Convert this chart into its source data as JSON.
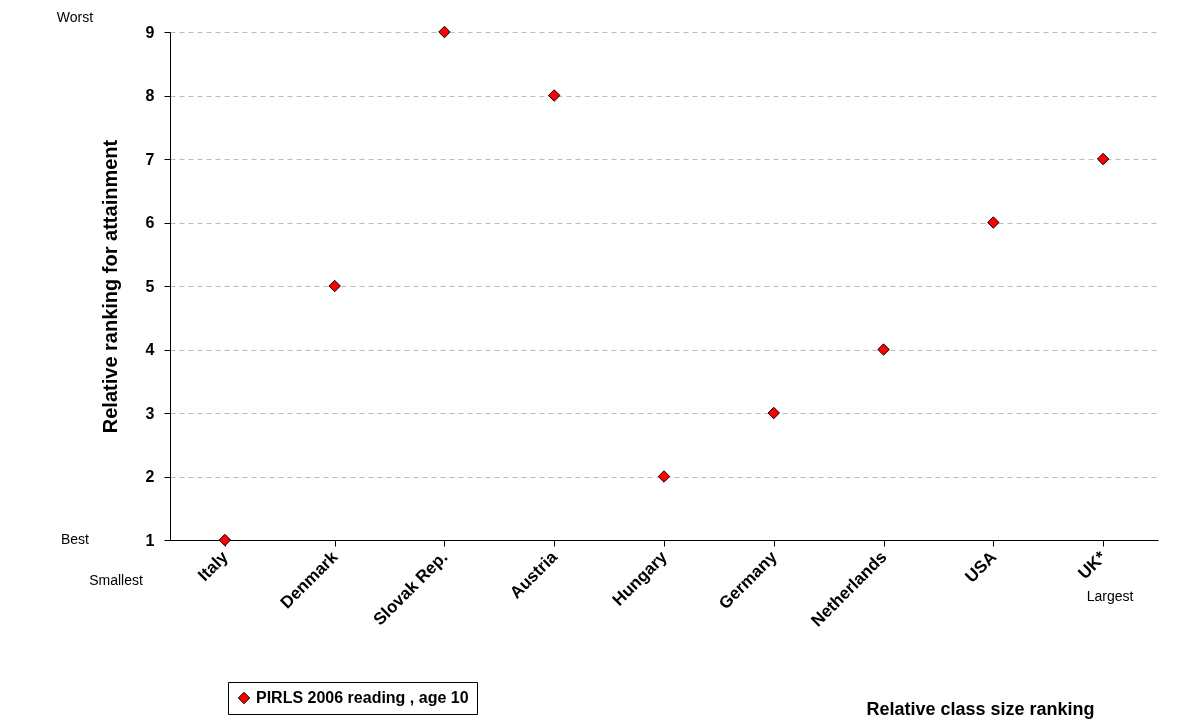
{
  "chart_data": {
    "type": "scatter",
    "xlabel": "Relative class size ranking",
    "ylabel": "Relative ranking for attainment",
    "categories": [
      "Italy",
      "Denmark",
      "Slovak Rep.",
      "Austria",
      "Hungary",
      "Germany",
      "Netherlands",
      "USA",
      "UK*"
    ],
    "series": [
      {
        "name": "PIRLS 2006 reading , age 10",
        "color": "#ff0000",
        "values": [
          1,
          5,
          9,
          8,
          2,
          3,
          4,
          6,
          7
        ]
      }
    ],
    "ylim": [
      1,
      9
    ],
    "yticks": [
      1,
      2,
      3,
      4,
      5,
      6,
      7,
      8,
      9
    ],
    "grid": "y",
    "marker": "diamond",
    "legend": "bottom left",
    "annotations": [
      "Worst",
      "Best",
      "Smallest",
      "Largest"
    ]
  }
}
